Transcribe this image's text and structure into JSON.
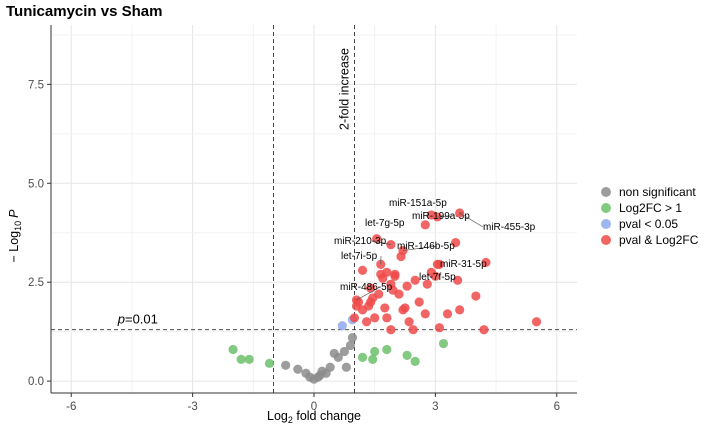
{
  "chart_data": {
    "type": "scatter",
    "title": "Tunicamycin vs Sham",
    "xlabel": {
      "main": "Log",
      "sub": "2",
      "rest": " fold change"
    },
    "ylabel": {
      "prefix": "− Log",
      "sub": "10",
      "var": "P"
    },
    "xlim": [
      -6.5,
      6.5
    ],
    "ylim": [
      -0.3,
      9.0
    ],
    "xticks": [
      -6,
      -3,
      0,
      3,
      6
    ],
    "xtick_labels": [
      "-6",
      "-3",
      "0",
      "3",
      "6"
    ],
    "yticks": [
      0.0,
      2.5,
      5.0,
      7.5
    ],
    "ytick_labels": [
      "0.0",
      "2.5",
      "5.0",
      "7.5"
    ],
    "thresholds": {
      "fc_lines": [
        -1,
        1
      ],
      "p_line_y": 1.3
    },
    "threshold_labels": {
      "p_prefix": "p",
      "p_rest": "=0.01",
      "fc": "2-fold increase"
    },
    "colors": {
      "non_significant": "#8c8c8c",
      "log2fc": "#6cbf6c",
      "pval": "#8ea9ee",
      "both": "#ee4a4a"
    },
    "legend": [
      {
        "label": "non significant",
        "category": "non_significant"
      },
      {
        "label": "Log2FC > 1",
        "category": "log2fc"
      },
      {
        "label": "pval < 0.05",
        "category": "pval"
      },
      {
        "label": "pval & Log2FC",
        "category": "both"
      }
    ],
    "series": [
      {
        "name": "non significant",
        "category": "non_significant",
        "x": [
          -0.7,
          -0.4,
          -0.2,
          -0.1,
          0.0,
          0.1,
          0.15,
          0.2,
          0.3,
          0.4,
          0.5,
          0.6,
          0.75,
          0.8,
          0.9,
          0.95
        ],
        "y": [
          0.4,
          0.3,
          0.2,
          0.1,
          0.05,
          0.1,
          0.15,
          0.25,
          0.2,
          0.35,
          0.7,
          0.6,
          0.75,
          0.35,
          0.9,
          1.1
        ]
      },
      {
        "name": "Log2FC > 1",
        "category": "log2fc",
        "x": [
          -2.0,
          -1.8,
          -1.6,
          -1.1,
          1.2,
          1.45,
          1.5,
          1.8,
          2.3,
          2.5,
          3.2
        ],
        "y": [
          0.8,
          0.55,
          0.55,
          0.45,
          0.6,
          0.55,
          0.75,
          0.8,
          0.65,
          0.5,
          0.95
        ]
      },
      {
        "name": "pval < 0.05",
        "category": "pval",
        "x": [
          0.7,
          0.95
        ],
        "y": [
          1.4,
          1.55
        ]
      },
      {
        "name": "pval & Log2FC",
        "category": "both",
        "x": [
          1.0,
          1.05,
          1.1,
          1.2,
          1.3,
          1.35,
          1.4,
          1.45,
          1.5,
          1.6,
          1.65,
          1.7,
          1.75,
          1.8,
          1.9,
          1.95,
          2.0,
          2.1,
          2.2,
          2.25,
          2.35,
          2.45,
          2.6,
          2.75,
          2.9,
          3.0,
          3.05,
          3.1,
          3.3,
          3.5,
          3.55,
          3.6,
          4.0,
          4.2,
          4.25,
          5.5,
          1.2,
          1.4,
          1.55,
          1.8,
          2.0,
          2.3,
          1.9,
          2.15,
          2.5
        ],
        "y": [
          1.6,
          1.9,
          2.0,
          1.8,
          1.5,
          1.9,
          2.0,
          2.1,
          1.6,
          2.2,
          2.7,
          2.6,
          1.85,
          1.6,
          2.45,
          2.3,
          2.7,
          2.2,
          1.8,
          1.85,
          1.5,
          1.3,
          2.0,
          1.7,
          2.75,
          2.65,
          2.95,
          1.35,
          1.7,
          3.5,
          2.55,
          1.8,
          2.15,
          1.3,
          3.0,
          1.5,
          2.8,
          2.35,
          3.6,
          2.75,
          2.65,
          2.4,
          1.3,
          3.15,
          2.55
        ]
      }
    ],
    "labeled_points": [
      {
        "label": "miR-151a-5p",
        "x": 2.9,
        "y": 4.2
      },
      {
        "label": "miR-199a-5p",
        "x": 3.05,
        "y": 4.15
      },
      {
        "label": "miR-455-3p",
        "x": 3.6,
        "y": 4.25
      },
      {
        "label": "let-7g-5p",
        "x": 2.75,
        "y": 3.95
      },
      {
        "label": "miR-210-3p",
        "x": 1.9,
        "y": 3.45
      },
      {
        "label": "miR-146b-5p",
        "x": 2.2,
        "y": 3.3
      },
      {
        "label": "let-7i-5p",
        "x": 1.65,
        "y": 2.95
      },
      {
        "label": "miR-31-5p",
        "x": 3.1,
        "y": 2.95
      },
      {
        "label": "let-7f-5p",
        "x": 2.8,
        "y": 2.45
      },
      {
        "label": "miR-486-5p",
        "x": 1.05,
        "y": 2.05
      }
    ]
  }
}
